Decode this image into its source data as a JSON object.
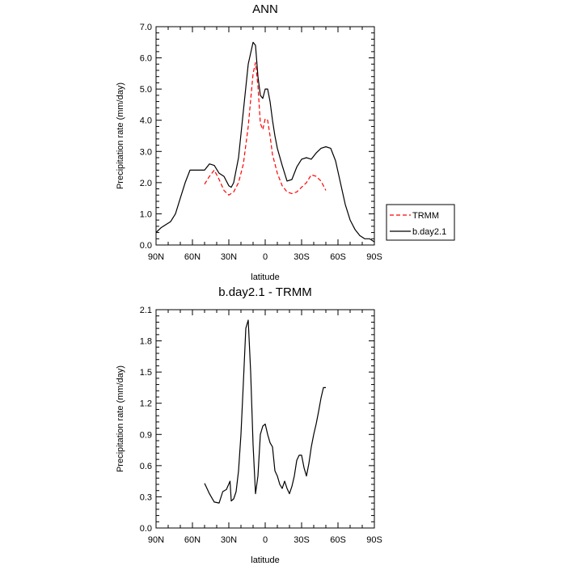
{
  "chart_data": [
    {
      "type": "line",
      "title": "ANN",
      "xlabel": "latitude",
      "ylabel": "Precipitation rate (mm/day)",
      "xlim": [
        90,
        -90
      ],
      "ylim": [
        0,
        7
      ],
      "x_ticks": [
        90,
        60,
        30,
        0,
        -30,
        -60,
        -90
      ],
      "x_tick_labels": [
        "90N",
        "60N",
        "30N",
        "0",
        "30S",
        "60S",
        "90S"
      ],
      "y_ticks": [
        0,
        1,
        2,
        3,
        4,
        5,
        6,
        7
      ],
      "y_tick_labels": [
        "0.0",
        "1.0",
        "2.0",
        "3.0",
        "4.0",
        "5.0",
        "6.0",
        "7.0"
      ],
      "grid": false,
      "legend": {
        "placement": "outside-right",
        "entries": [
          {
            "label": "TRMM",
            "color": "#ff0000",
            "style": "dashed"
          },
          {
            "label": "b.day2.1",
            "color": "#000000",
            "style": "solid"
          }
        ]
      },
      "series": [
        {
          "name": "b.day2.1",
          "color": "#000000",
          "style": "solid",
          "x": [
            90,
            86,
            82,
            78,
            74,
            70,
            66,
            62,
            58,
            54,
            50,
            46,
            42,
            38,
            34,
            30,
            28,
            26,
            22,
            18,
            14,
            10,
            8,
            6,
            4,
            2,
            0,
            -2,
            -4,
            -6,
            -8,
            -10,
            -14,
            -18,
            -22,
            -26,
            -30,
            -34,
            -38,
            -42,
            -46,
            -50,
            -54,
            -58,
            -62,
            -66,
            -70,
            -74,
            -78,
            -82,
            -86,
            -90
          ],
          "y": [
            0.4,
            0.55,
            0.65,
            0.75,
            1.0,
            1.5,
            2.0,
            2.4,
            2.4,
            2.4,
            2.4,
            2.6,
            2.55,
            2.3,
            2.2,
            1.9,
            1.85,
            2.0,
            2.8,
            4.3,
            5.8,
            6.5,
            6.4,
            5.4,
            4.8,
            4.7,
            5.0,
            5.0,
            4.6,
            4.0,
            3.5,
            3.1,
            2.55,
            2.05,
            2.1,
            2.5,
            2.75,
            2.8,
            2.75,
            2.95,
            3.1,
            3.15,
            3.1,
            2.7,
            2.0,
            1.3,
            0.8,
            0.5,
            0.3,
            0.2,
            0.2,
            0.1
          ]
        },
        {
          "name": "TRMM",
          "color": "#ff0000",
          "style": "dashed",
          "x": [
            50,
            46,
            42,
            38,
            34,
            30,
            26,
            22,
            18,
            14,
            10,
            8,
            6,
            4,
            2,
            0,
            -2,
            -4,
            -6,
            -8,
            -10,
            -14,
            -18,
            -22,
            -26,
            -30,
            -34,
            -38,
            -42,
            -46,
            -50
          ],
          "y": [
            1.95,
            2.2,
            2.4,
            2.1,
            1.75,
            1.6,
            1.7,
            2.0,
            2.6,
            3.8,
            5.5,
            5.85,
            5.1,
            3.9,
            3.7,
            4.05,
            4.0,
            3.5,
            2.9,
            2.6,
            2.3,
            1.9,
            1.7,
            1.65,
            1.7,
            1.85,
            2.0,
            2.25,
            2.2,
            2.05,
            1.75
          ]
        }
      ]
    },
    {
      "type": "line",
      "title": "b.day2.1 - TRMM",
      "xlabel": "latitude",
      "ylabel": "Precipitation rate (mm/day)",
      "xlim": [
        90,
        -90
      ],
      "ylim": [
        0,
        2.1
      ],
      "x_ticks": [
        90,
        60,
        30,
        0,
        -30,
        -60,
        -90
      ],
      "x_tick_labels": [
        "90N",
        "60N",
        "30N",
        "0",
        "30S",
        "60S",
        "90S"
      ],
      "y_ticks": [
        0,
        0.3,
        0.6,
        0.9,
        1.2,
        1.5,
        1.8,
        2.1
      ],
      "y_tick_labels": [
        "0.0",
        "0.3",
        "0.6",
        "0.9",
        "1.2",
        "1.5",
        "1.8",
        "2.1"
      ],
      "grid": false,
      "series": [
        {
          "name": "b.day2.1 - TRMM",
          "color": "#000000",
          "style": "solid",
          "x": [
            50,
            46,
            42,
            38,
            35,
            32,
            29,
            28,
            26,
            24,
            22,
            20,
            18,
            16,
            14,
            12,
            10,
            8,
            6,
            4,
            2,
            0,
            -2,
            -4,
            -6,
            -8,
            -10,
            -12,
            -14,
            -16,
            -18,
            -20,
            -22,
            -24,
            -26,
            -28,
            -30,
            -32,
            -34,
            -36,
            -38,
            -40,
            -42,
            -44,
            -46,
            -48,
            -50
          ],
          "y": [
            0.43,
            0.33,
            0.25,
            0.24,
            0.35,
            0.37,
            0.45,
            0.26,
            0.28,
            0.35,
            0.55,
            0.9,
            1.4,
            1.92,
            2.0,
            1.5,
            0.8,
            0.33,
            0.5,
            0.9,
            0.98,
            1.0,
            0.9,
            0.82,
            0.78,
            0.55,
            0.5,
            0.42,
            0.38,
            0.45,
            0.38,
            0.33,
            0.4,
            0.5,
            0.65,
            0.7,
            0.7,
            0.58,
            0.5,
            0.62,
            0.78,
            0.9,
            1.0,
            1.12,
            1.25,
            1.35,
            1.35
          ]
        }
      ]
    }
  ]
}
